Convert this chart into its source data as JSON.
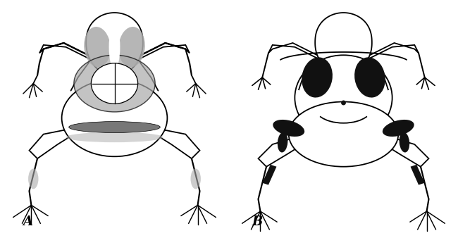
{
  "background_color": "#ffffff",
  "label_A": "A",
  "label_B": "B",
  "label_fontsize": 13,
  "line_color": "#000000",
  "stipple_color": "#aaaaaa",
  "dark_color": "#111111",
  "fig_width": 6.5,
  "fig_height": 3.38,
  "dpi": 100
}
